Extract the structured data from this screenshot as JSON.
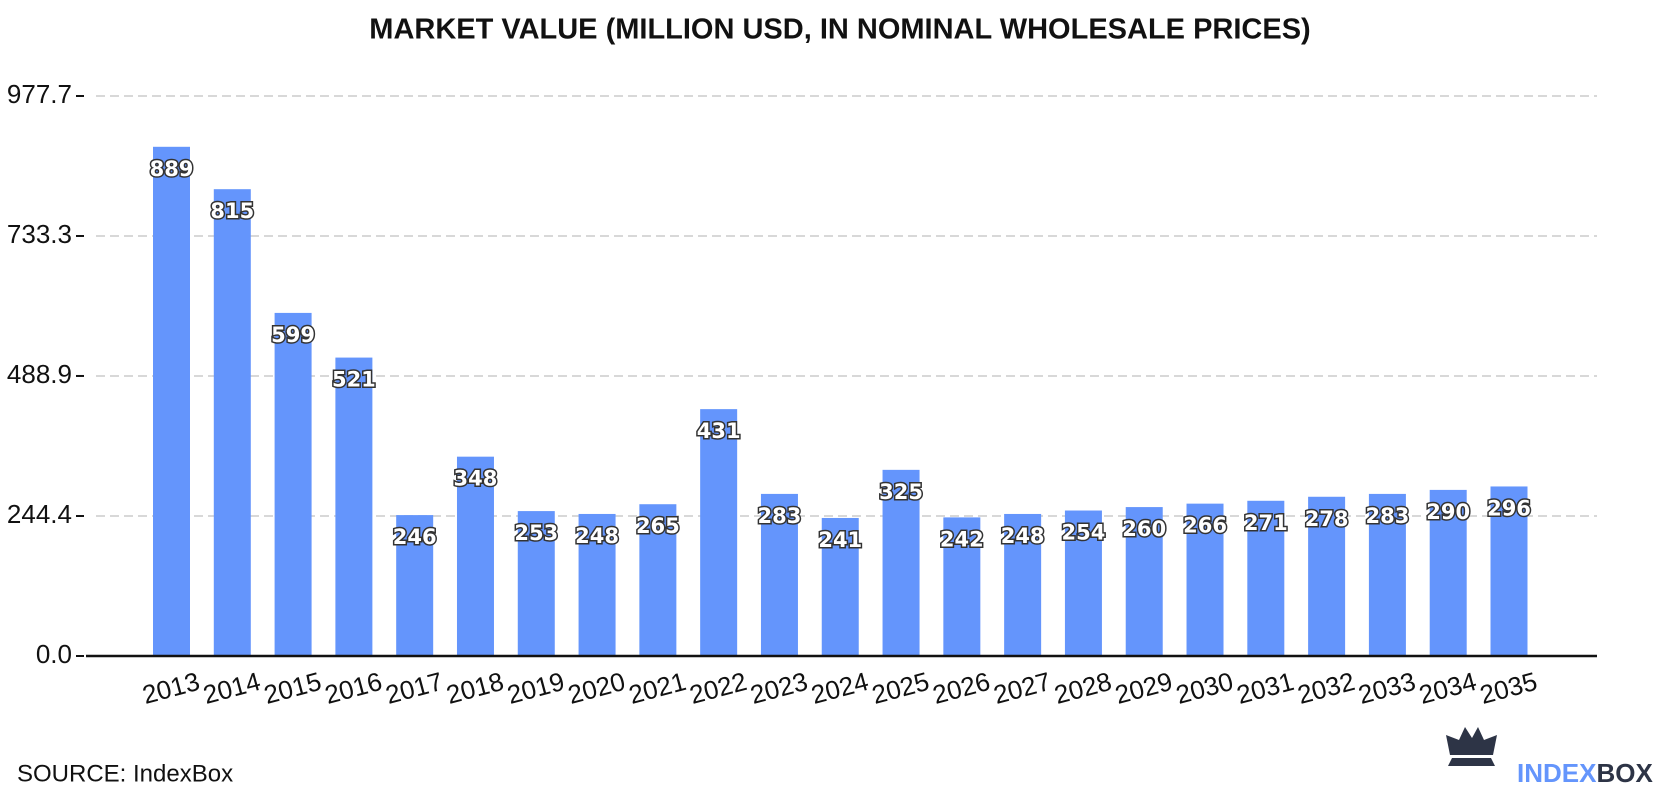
{
  "chart_data": {
    "type": "bar",
    "title": "MARKET VALUE (MILLION USD, IN NOMINAL WHOLESALE PRICES)",
    "categories": [
      "2013",
      "2014",
      "2015",
      "2016",
      "2017",
      "2018",
      "2019",
      "2020",
      "2021",
      "2022",
      "2023",
      "2024",
      "2025",
      "2026",
      "2027",
      "2028",
      "2029",
      "2030",
      "2031",
      "2032",
      "2033",
      "2034",
      "2035"
    ],
    "values": [
      889,
      815,
      599,
      521,
      246,
      348,
      253,
      248,
      265,
      431,
      283,
      241,
      325,
      242,
      248,
      254,
      260,
      266,
      271,
      278,
      283,
      290,
      296
    ],
    "color": "#6495fc",
    "ylim": [
      0,
      977.7
    ],
    "yticks": [
      {
        "value": 0,
        "label": "0.0"
      },
      244.4,
      488.9,
      733.3,
      977.7
    ],
    "grid": true
  },
  "source": "SOURCE: IndexBox",
  "logo": {
    "part1": "INDEX",
    "part2": "BOX"
  }
}
